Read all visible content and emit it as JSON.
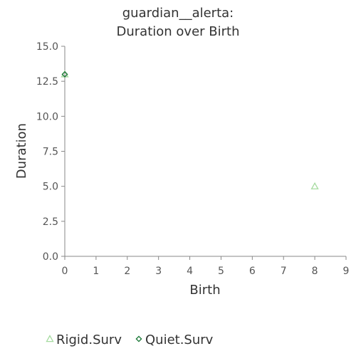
{
  "chart_data": {
    "type": "scatter",
    "title_lines": [
      "guardian__alerta:",
      "Duration over Birth"
    ],
    "xlabel": "Birth",
    "ylabel": "Duration",
    "xlim": [
      0,
      9
    ],
    "ylim": [
      0,
      15
    ],
    "x_ticks": [
      0,
      1,
      2,
      3,
      4,
      5,
      6,
      7,
      8,
      9
    ],
    "y_ticks": [
      0,
      2.5,
      5,
      7.5,
      10,
      12.5,
      15
    ],
    "y_tick_labels": [
      "0.0",
      "2.5",
      "5.0",
      "7.5",
      "10.0",
      "12.5",
      "15.0"
    ],
    "grid": false,
    "legend_position": "bottom",
    "series": [
      {
        "name": "Rigid.Surv",
        "marker": "triangle",
        "color": "#a6dba0",
        "points": [
          {
            "x": 0,
            "y": 13
          },
          {
            "x": 8,
            "y": 5
          }
        ]
      },
      {
        "name": "Quiet.Surv",
        "marker": "diamond",
        "color": "#1b7837",
        "points": [
          {
            "x": 0,
            "y": 13
          }
        ]
      }
    ]
  }
}
